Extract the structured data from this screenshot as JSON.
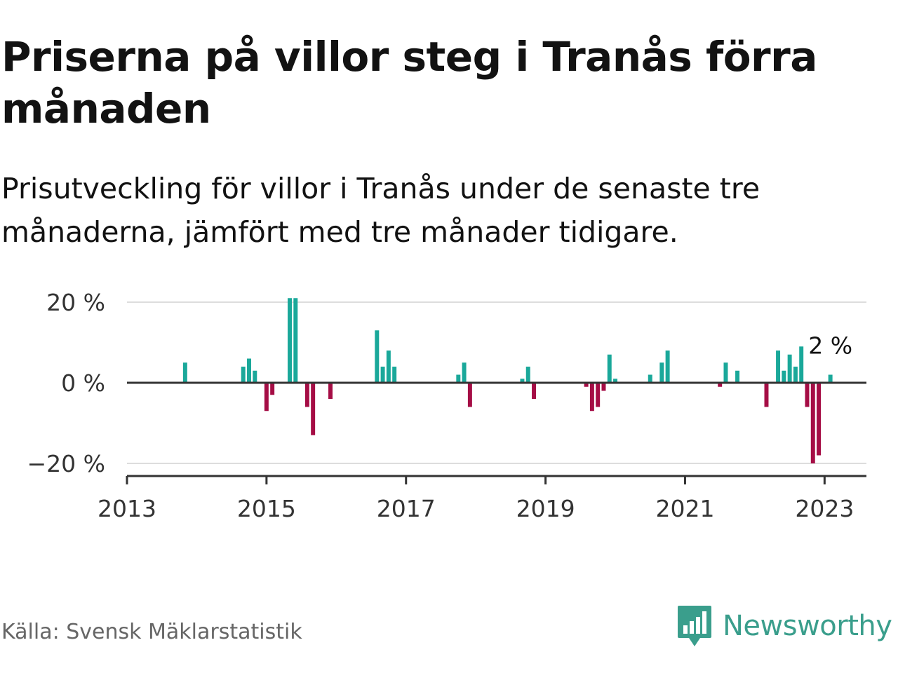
{
  "title": "Priserna på villor steg i Tranås förra månaden",
  "subtitle": "Prisutveckling för villor i Tranås under de senaste tre månaderna, jämfört med tre månader tidigare.",
  "source": "Källa: Svensk Mäklarstatistik",
  "brand": {
    "name": "Newsworthy",
    "icon": "newsworthy-logo-icon",
    "color": "#3a9e8c"
  },
  "colors": {
    "positive": "#1aa89a",
    "negative": "#a50d45",
    "grid": "#dddddd",
    "axis": "#333333",
    "text": "#121212"
  },
  "chart_data": {
    "type": "bar",
    "title": "Priserna på villor steg i Tranås förra månaden",
    "xlabel": "",
    "ylabel": "",
    "unit": "%",
    "ylim": [
      -23,
      23
    ],
    "xlim": [
      2013,
      2023.6
    ],
    "grid": true,
    "y_ticks": [
      {
        "value": 20,
        "label": "20 %"
      },
      {
        "value": 0,
        "label": "0 %"
      },
      {
        "value": -20,
        "label": "−20 %"
      }
    ],
    "x_ticks": [
      {
        "value": 2013,
        "label": "2013"
      },
      {
        "value": 2015,
        "label": "2015"
      },
      {
        "value": 2017,
        "label": "2017"
      },
      {
        "value": 2019,
        "label": "2019"
      },
      {
        "value": 2021,
        "label": "2021"
      },
      {
        "value": 2023,
        "label": "2023"
      }
    ],
    "data_label": {
      "value": 2,
      "text": "2 %",
      "date": "2023-02"
    },
    "series": [
      {
        "name": "Prisutveckling",
        "points": [
          {
            "date": "2013-11",
            "value": 5
          },
          {
            "date": "2014-09",
            "value": 4
          },
          {
            "date": "2014-10",
            "value": 6
          },
          {
            "date": "2014-11",
            "value": 3
          },
          {
            "date": "2015-01",
            "value": -7
          },
          {
            "date": "2015-02",
            "value": -3
          },
          {
            "date": "2015-05",
            "value": 21
          },
          {
            "date": "2015-06",
            "value": 21
          },
          {
            "date": "2015-08",
            "value": -6
          },
          {
            "date": "2015-09",
            "value": -13
          },
          {
            "date": "2015-12",
            "value": -4
          },
          {
            "date": "2016-08",
            "value": 13
          },
          {
            "date": "2016-09",
            "value": 4
          },
          {
            "date": "2016-10",
            "value": 8
          },
          {
            "date": "2016-11",
            "value": 4
          },
          {
            "date": "2017-10",
            "value": 2
          },
          {
            "date": "2017-11",
            "value": 5
          },
          {
            "date": "2017-12",
            "value": -6
          },
          {
            "date": "2018-09",
            "value": 1
          },
          {
            "date": "2018-10",
            "value": 4
          },
          {
            "date": "2018-11",
            "value": -4
          },
          {
            "date": "2019-08",
            "value": -1
          },
          {
            "date": "2019-09",
            "value": -7
          },
          {
            "date": "2019-10",
            "value": -6
          },
          {
            "date": "2019-11",
            "value": -2
          },
          {
            "date": "2019-12",
            "value": 7
          },
          {
            "date": "2020-01",
            "value": 1
          },
          {
            "date": "2020-07",
            "value": 2
          },
          {
            "date": "2020-09",
            "value": 5
          },
          {
            "date": "2020-10",
            "value": 8
          },
          {
            "date": "2021-07",
            "value": -1
          },
          {
            "date": "2021-08",
            "value": 5
          },
          {
            "date": "2021-10",
            "value": 3
          },
          {
            "date": "2022-03",
            "value": -6
          },
          {
            "date": "2022-05",
            "value": 8
          },
          {
            "date": "2022-06",
            "value": 3
          },
          {
            "date": "2022-07",
            "value": 7
          },
          {
            "date": "2022-08",
            "value": 4
          },
          {
            "date": "2022-09",
            "value": 9
          },
          {
            "date": "2022-10",
            "value": -6
          },
          {
            "date": "2022-11",
            "value": -20
          },
          {
            "date": "2022-12",
            "value": -18
          },
          {
            "date": "2023-02",
            "value": 2
          }
        ]
      }
    ]
  }
}
